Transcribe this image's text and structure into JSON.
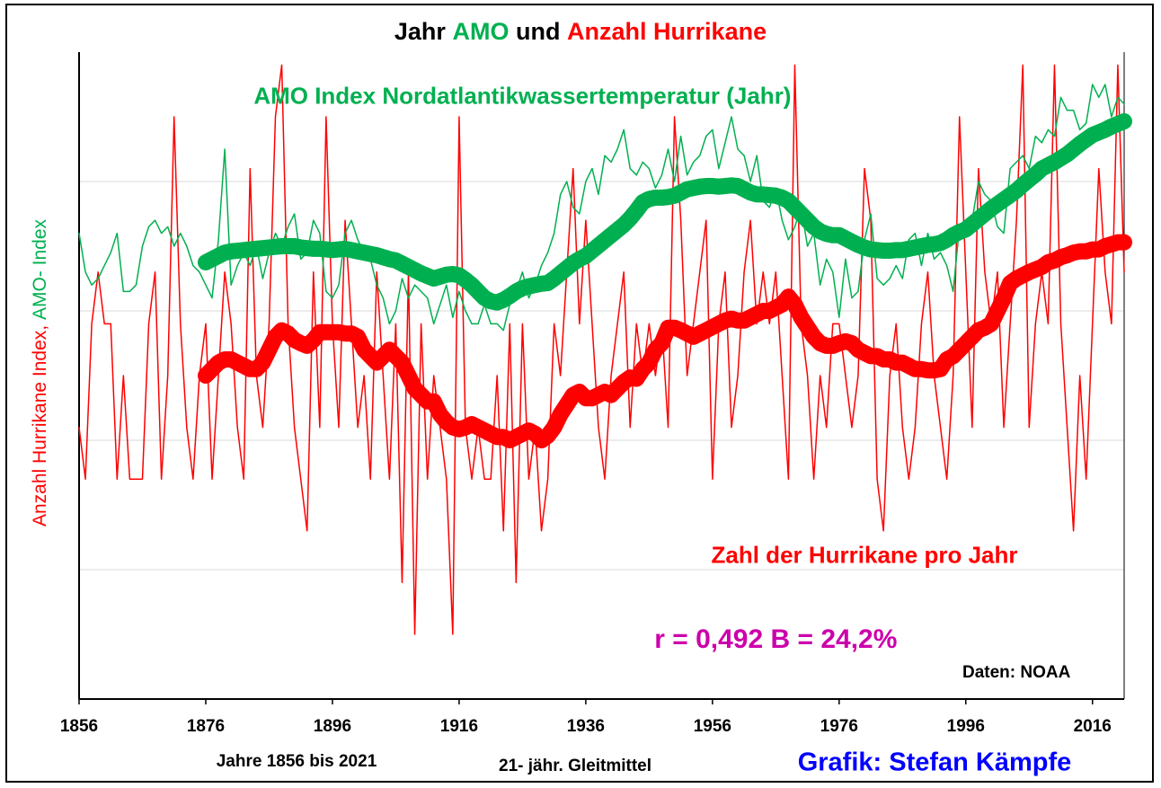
{
  "chart_data": {
    "type": "line",
    "title_parts": [
      {
        "text": "Jahr",
        "color": "#000000"
      },
      {
        "text": "AMO",
        "color": "#00b050"
      },
      {
        "text": "und",
        "color": "#000000"
      },
      {
        "text": "Anzahl Hurrikane",
        "color": "#ff0000"
      }
    ],
    "y_label_parts": [
      {
        "text": "Anzahl Hurrikane Index,",
        "color": "#ff0000"
      },
      {
        "text": "AMO- Index",
        "color": "#00b050"
      }
    ],
    "x_label": "Jahre 1856 bis 2021",
    "annotations": [
      {
        "text": "AMO Index Nordatlantikwassertemperatur (Jahr)",
        "color": "#00b050",
        "x": 1926,
        "y": 93,
        "size": 26
      },
      {
        "text": "Zahl der Hurrikane pro Jahr",
        "color": "#ff0000",
        "x": 1980,
        "y": 22,
        "size": 26
      },
      {
        "text": "r = 0,492   B = 24,2%",
        "color": "#cc00aa",
        "x": 1966,
        "y": 9,
        "size": 30
      },
      {
        "text": "Daten: NOAA",
        "color": "#000000",
        "x": 2004,
        "y": 4,
        "size": 19
      }
    ],
    "footer_notes": [
      {
        "text": "21- jähr. Gleitmittel",
        "color": "#000000",
        "size": 19
      },
      {
        "text": "Grafik: Stefan Kämpfe",
        "color": "#0000ff",
        "size": 29
      }
    ],
    "x_start": 1856,
    "xlim": [
      1856,
      2021
    ],
    "xticks": [
      1856,
      1876,
      1896,
      1916,
      1936,
      1956,
      1976,
      1996,
      2016
    ],
    "ylim": [
      0,
      100
    ],
    "grid_y": [
      20,
      40,
      60,
      80
    ],
    "series": [
      {
        "color": "#ff0000",
        "width": 1.5,
        "values": [
          42,
          34,
          58,
          66,
          58,
          58,
          34,
          50,
          34,
          34,
          34,
          58,
          66,
          34,
          50,
          90,
          58,
          42,
          34,
          50,
          58,
          34,
          50,
          66,
          58,
          42,
          34,
          82,
          50,
          42,
          58,
          90,
          98,
          58,
          42,
          34,
          26,
          66,
          42,
          90,
          58,
          42,
          74,
          58,
          42,
          50,
          34,
          66,
          50,
          34,
          58,
          18,
          66,
          10,
          58,
          34,
          50,
          42,
          34,
          10,
          90,
          42,
          34,
          42,
          34,
          34,
          50,
          26,
          58,
          18,
          58,
          34,
          42,
          26,
          34,
          58,
          50,
          66,
          82,
          58,
          74,
          58,
          42,
          34,
          50,
          58,
          66,
          42,
          58,
          50,
          58,
          50,
          58,
          42,
          90,
          74,
          50,
          58,
          66,
          74,
          34,
          58,
          66,
          42,
          50,
          66,
          74,
          58,
          66,
          58,
          66,
          50,
          34,
          98,
          58,
          50,
          34,
          50,
          42,
          58,
          58,
          50,
          42,
          50,
          82,
          74,
          34,
          26,
          50,
          58,
          42,
          34,
          42,
          58,
          66,
          50,
          42,
          34,
          50,
          90,
          66,
          42,
          82,
          66,
          58,
          66,
          42,
          58,
          74,
          98,
          42,
          58,
          66,
          58,
          98,
          58,
          42,
          26,
          50,
          34,
          58,
          82,
          66,
          58,
          98,
          66
        ]
      },
      {
        "color": "#00b050",
        "width": 1.5,
        "values": [
          72,
          66,
          64,
          65,
          67,
          69,
          72,
          63,
          63,
          64,
          70,
          73,
          74,
          72,
          73,
          70,
          72,
          70,
          67,
          66,
          64,
          62,
          71,
          85,
          64,
          67,
          69,
          67,
          70,
          65,
          69,
          72,
          70,
          73,
          75,
          68,
          69,
          74,
          72,
          63,
          62,
          64,
          72,
          74,
          71,
          69,
          68,
          64,
          62,
          58,
          60,
          65,
          62,
          64,
          63,
          62,
          58,
          61,
          64,
          59,
          63,
          60,
          58,
          58,
          61,
          58,
          58,
          57,
          61,
          63,
          66,
          62,
          64,
          67,
          69,
          72,
          78,
          80,
          76,
          75,
          80,
          82,
          78,
          84,
          83,
          85,
          88,
          82,
          81,
          83,
          82,
          79,
          81,
          85,
          80,
          87,
          81,
          83,
          84,
          87,
          88,
          82,
          86,
          90,
          85,
          84,
          80,
          84,
          77,
          76,
          79,
          74,
          71,
          73,
          76,
          70,
          72,
          64,
          68,
          66,
          59,
          68,
          62,
          63,
          71,
          75,
          65,
          64,
          65,
          67,
          65,
          71,
          72,
          67,
          72,
          68,
          69,
          67,
          63,
          73,
          73,
          74,
          80,
          78,
          77,
          73,
          72,
          82,
          83,
          84,
          82,
          87,
          86,
          88,
          87,
          93,
          91,
          91,
          88,
          89,
          95,
          93,
          95,
          90,
          93,
          92
        ]
      },
      {
        "color": "#00b050",
        "width": 18,
        "values": [
          null,
          null,
          null,
          null,
          null,
          null,
          null,
          null,
          null,
          null,
          null,
          null,
          null,
          null,
          null,
          null,
          null,
          null,
          null,
          null,
          67.5,
          68,
          68.5,
          69,
          69.2,
          69.3,
          69.4,
          69.5,
          69.6,
          69.7,
          69.8,
          69.9,
          70,
          70,
          70,
          69.8,
          69.7,
          69.6,
          69.6,
          69.5,
          69.4,
          69.5,
          69.6,
          69.4,
          69.2,
          69,
          68.8,
          68.6,
          68.3,
          68,
          67.8,
          67.3,
          66.8,
          66.3,
          65.8,
          65.4,
          65,
          65.3,
          65.6,
          65.7,
          65.5,
          64.8,
          64,
          63,
          62,
          61.5,
          61.3,
          61.7,
          62.3,
          63,
          63.5,
          63.8,
          64,
          64.2,
          64.3,
          65,
          65.8,
          66.6,
          67.4,
          68,
          68.5,
          69.3,
          70.1,
          70.9,
          71.7,
          72.5,
          73.3,
          74.3,
          75.5,
          76.8,
          77.3,
          77.5,
          77.5,
          77.6,
          77.8,
          78.3,
          78.8,
          79,
          79.2,
          79.3,
          79.3,
          79.2,
          79.3,
          79.4,
          79.3,
          78.8,
          78.3,
          78,
          78,
          77.9,
          77.8,
          77.5,
          77,
          76,
          75,
          74,
          73,
          72.3,
          71.9,
          71.7,
          71.7,
          71.2,
          70.7,
          70.2,
          69.8,
          69.5,
          69.4,
          69.3,
          69.3,
          69.4,
          69.4,
          69.6,
          69.8,
          70,
          70.2,
          70.3,
          70.5,
          71,
          71.7,
          72.2,
          72.6,
          73.4,
          74.2,
          75,
          75.8,
          76.5,
          77.2,
          77.9,
          78.6,
          79.5,
          80.3,
          81.1,
          82,
          82.5,
          83,
          83.6,
          84.2,
          85,
          85.8,
          86.5,
          87.2,
          87.6,
          88,
          88.5,
          88.9,
          89.3
        ]
      },
      {
        "color": "#ff0000",
        "width": 18,
        "values": [
          null,
          null,
          null,
          null,
          null,
          null,
          null,
          null,
          null,
          null,
          null,
          null,
          null,
          null,
          null,
          null,
          null,
          null,
          null,
          null,
          50,
          51,
          52,
          52.5,
          52.5,
          52,
          51.5,
          51,
          51,
          52,
          54,
          56,
          57,
          56.5,
          55.5,
          55,
          54.6,
          55.5,
          56.7,
          56.7,
          56.7,
          56.7,
          56.5,
          56.5,
          56,
          54,
          53,
          52,
          53,
          54,
          53,
          52,
          50,
          48,
          47,
          46,
          46,
          44,
          42.8,
          42,
          41.7,
          42,
          42.5,
          42,
          41.5,
          41,
          40.5,
          40.5,
          40,
          40.5,
          41,
          41.5,
          41,
          40,
          40.7,
          42,
          44,
          45.5,
          47,
          47.5,
          46.5,
          46.5,
          47,
          47.5,
          47,
          48,
          49,
          49.7,
          49.5,
          51,
          52,
          54,
          55,
          57.4,
          57.4,
          57,
          56.5,
          56,
          56.5,
          57,
          57.5,
          58,
          58.5,
          58.8,
          58.5,
          58.5,
          59,
          59.5,
          60,
          60,
          60.5,
          61,
          62.2,
          61,
          59,
          57.5,
          56,
          55,
          54.6,
          54.6,
          55,
          55.3,
          55,
          54,
          53.5,
          53,
          53,
          52.5,
          52.5,
          52,
          52,
          51.5,
          51,
          51,
          50.8,
          50.8,
          51,
          52.5,
          53,
          54,
          55,
          56,
          57,
          57.4,
          58,
          60,
          62,
          64.3,
          65,
          65.5,
          66,
          66.4,
          66.8,
          67.5,
          67.8,
          68.3,
          68.6,
          69,
          69.2,
          69.2,
          69.5,
          69.5,
          70,
          70.3,
          70.6,
          70.6
        ]
      }
    ]
  }
}
